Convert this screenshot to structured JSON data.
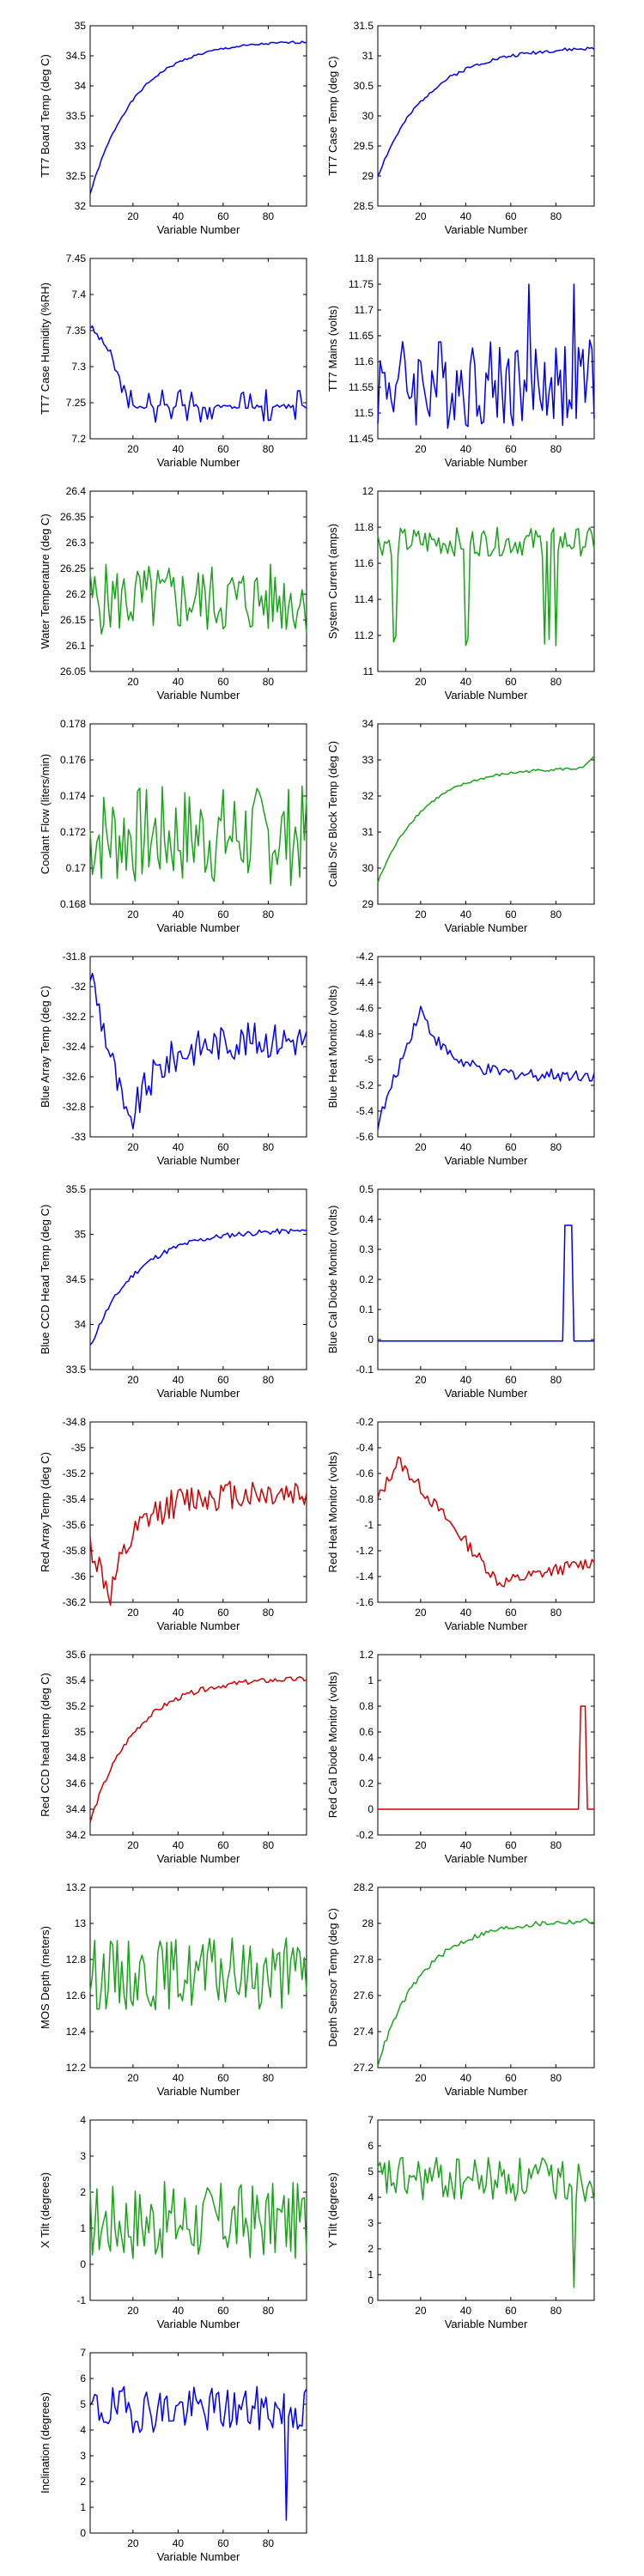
{
  "colors": {
    "blue": "#0000ee",
    "green": "#1aa31a",
    "red": "#cc0000"
  },
  "x_axis": {
    "label": "Variable Number",
    "ticks": [
      20,
      40,
      60,
      80
    ],
    "xlim": [
      1,
      97
    ]
  },
  "chart_data": [
    {
      "type": "line",
      "title": "",
      "ylabel": "TT7 Board Temp (deg C)",
      "xlabel": "Variable Number",
      "color": "blue",
      "ylim": [
        32,
        35
      ],
      "yticks": [
        "32",
        "32.5",
        "33",
        "33.5",
        "34",
        "34.5",
        "35"
      ],
      "ytick_values": [
        32,
        32.5,
        33,
        33.5,
        34,
        34.5,
        35
      ],
      "kind": "rise",
      "params": {
        "start": 32.2,
        "end": 34.75,
        "rate": 0.05,
        "noise": 0.02,
        "seed": 1
      }
    },
    {
      "type": "line",
      "title": "",
      "ylabel": "TT7 Case Temp (deg C)",
      "xlabel": "Variable Number",
      "color": "blue",
      "ylim": [
        28.5,
        31.5
      ],
      "yticks": [
        "28.5",
        "29",
        "29.5",
        "30",
        "30.5",
        "31",
        "31.5"
      ],
      "ytick_values": [
        28.5,
        29,
        29.5,
        30,
        30.5,
        31,
        31.5
      ],
      "kind": "rise",
      "params": {
        "start": 29.0,
        "end": 31.15,
        "rate": 0.045,
        "noise": 0.03,
        "seed": 2
      }
    },
    {
      "type": "line",
      "title": "",
      "ylabel": "TT7 Case Humidity (%RH)",
      "xlabel": "Variable Number",
      "color": "blue",
      "ylim": [
        7.2,
        7.45
      ],
      "yticks": [
        "7.2",
        "7.25",
        "7.3",
        "7.35",
        "7.4",
        "7.45"
      ],
      "ytick_values": [
        7.2,
        7.25,
        7.3,
        7.35,
        7.4,
        7.45
      ],
      "kind": "humidity",
      "params": {
        "seed": 3
      }
    },
    {
      "type": "line",
      "title": "",
      "ylabel": "TT7 Mains (volts)",
      "xlabel": "Variable Number",
      "color": "blue",
      "ylim": [
        11.45,
        11.8
      ],
      "yticks": [
        "11.45",
        "11.5",
        "11.55",
        "11.6",
        "11.65",
        "11.7",
        "11.75",
        "11.8"
      ],
      "ytick_values": [
        11.45,
        11.5,
        11.55,
        11.6,
        11.65,
        11.7,
        11.75,
        11.8
      ],
      "kind": "noise",
      "params": {
        "mean": 11.56,
        "amp": 0.09,
        "spike": 11.75,
        "seed": 4
      }
    },
    {
      "type": "line",
      "title": "",
      "ylabel": "Water Temperature (deg C)",
      "xlabel": "Variable Number",
      "color": "green",
      "ylim": [
        26.05,
        26.4
      ],
      "yticks": [
        "26.05",
        "26.1",
        "26.15",
        "26.2",
        "26.25",
        "26.3",
        "26.35",
        "26.4"
      ],
      "ytick_values": [
        26.05,
        26.1,
        26.15,
        26.2,
        26.25,
        26.3,
        26.35,
        26.4
      ],
      "kind": "noise",
      "params": {
        "mean": 26.19,
        "amp": 0.07,
        "seed": 5
      }
    },
    {
      "type": "line",
      "title": "",
      "ylabel": "System Current (amps)",
      "xlabel": "Variable Number",
      "color": "green",
      "ylim": [
        11,
        12
      ],
      "yticks": [
        "11",
        "11.2",
        "11.4",
        "11.6",
        "11.8",
        "12"
      ],
      "ytick_values": [
        11,
        11.2,
        11.4,
        11.6,
        11.8,
        12
      ],
      "kind": "dips",
      "params": {
        "mean": 11.72,
        "amp": 0.08,
        "dip": 11.12,
        "seed": 6
      }
    },
    {
      "type": "line",
      "title": "",
      "ylabel": "Coolant Flow (liters/min)",
      "xlabel": "Variable Number",
      "color": "green",
      "ylim": [
        0.168,
        0.178
      ],
      "yticks": [
        "0.168",
        "0.17",
        "0.172",
        "0.174",
        "0.176",
        "0.178"
      ],
      "ytick_values": [
        0.168,
        0.17,
        0.172,
        0.174,
        0.176,
        0.178
      ],
      "kind": "noise",
      "params": {
        "mean": 0.1718,
        "amp": 0.0028,
        "seed": 7
      }
    },
    {
      "type": "line",
      "title": "",
      "ylabel": "Calib Src Block Temp (deg C)",
      "xlabel": "Variable Number",
      "color": "green",
      "ylim": [
        29,
        34
      ],
      "yticks": [
        "29",
        "30",
        "31",
        "32",
        "33",
        "34"
      ],
      "ytick_values": [
        29,
        30,
        31,
        32,
        33,
        34
      ],
      "kind": "rise",
      "params": {
        "start": 29.6,
        "end": 32.8,
        "rate": 0.05,
        "noise": 0.04,
        "seed": 8,
        "tail": 33.1
      }
    },
    {
      "type": "line",
      "title": "",
      "ylabel": "Blue Array Temp (deg C)",
      "xlabel": "Variable Number",
      "color": "blue",
      "ylim": [
        -33,
        -31.8
      ],
      "yticks": [
        "-33",
        "-32.8",
        "-32.6",
        "-32.4",
        "-32.2",
        "-32",
        "-31.8"
      ],
      "ytick_values": [
        -33,
        -32.8,
        -32.6,
        -32.4,
        -32.2,
        -32,
        -31.8
      ],
      "kind": "dipRecover",
      "params": {
        "start": -31.9,
        "low": -32.95,
        "lowAt": 18,
        "end": -32.35,
        "amp": 0.12,
        "seed": 9
      }
    },
    {
      "type": "line",
      "title": "",
      "ylabel": "Blue Heat Monitor (volts)",
      "xlabel": "Variable Number",
      "color": "blue",
      "ylim": [
        -5.6,
        -4.2
      ],
      "yticks": [
        "-5.6",
        "-5.4",
        "-5.2",
        "-5",
        "-4.8",
        "-4.6",
        "-4.4",
        "-4.2"
      ],
      "ytick_values": [
        -5.6,
        -5.4,
        -5.2,
        -5,
        -4.8,
        -4.6,
        -4.4,
        -4.2
      ],
      "kind": "bump",
      "params": {
        "start": -5.5,
        "peak": -4.6,
        "peakAt": 20,
        "end": -5.12,
        "amp": 0.05,
        "seed": 10
      }
    },
    {
      "type": "line",
      "title": "",
      "ylabel": "Blue CCD Head Temp (deg C)",
      "xlabel": "Variable Number",
      "color": "blue",
      "ylim": [
        33.5,
        35.5
      ],
      "yticks": [
        "33.5",
        "34",
        "34.5",
        "35",
        "35.5"
      ],
      "ytick_values": [
        33.5,
        34,
        34.5,
        35,
        35.5
      ],
      "kind": "rise",
      "params": {
        "start": 33.75,
        "end": 35.05,
        "rate": 0.05,
        "noise": 0.03,
        "seed": 11
      }
    },
    {
      "type": "line",
      "title": "",
      "ylabel": "Blue Cal Diode Monitor (volts)",
      "xlabel": "Variable Number",
      "color": "blue",
      "ylim": [
        -0.1,
        0.5
      ],
      "yticks": [
        "-0.1",
        "0",
        "0.1",
        "0.2",
        "0.3",
        "0.4",
        "0.5"
      ],
      "ytick_values": [
        -0.1,
        0,
        0.1,
        0.2,
        0.3,
        0.4,
        0.5
      ],
      "kind": "pulse",
      "params": {
        "base": -0.005,
        "high": 0.38,
        "from": 84,
        "to": 87
      }
    },
    {
      "type": "line",
      "title": "",
      "ylabel": "Red Array Temp (deg C)",
      "xlabel": "Variable Number",
      "color": "red",
      "ylim": [
        -36.2,
        -34.8
      ],
      "yticks": [
        "-36.2",
        "-36",
        "-35.8",
        "-35.6",
        "-35.4",
        "-35.2",
        "-35",
        "-34.8"
      ],
      "ytick_values": [
        -36.2,
        -36,
        -35.8,
        -35.6,
        -35.4,
        -35.2,
        -35,
        -34.8
      ],
      "kind": "dipRecover",
      "params": {
        "start": -35.75,
        "low": -36.15,
        "lowAt": 10,
        "end": -35.35,
        "amp": 0.12,
        "seed": 12
      }
    },
    {
      "type": "line",
      "title": "",
      "ylabel": "Red Heat Monitor (volts)",
      "xlabel": "Variable Number",
      "color": "red",
      "ylim": [
        -1.6,
        -0.2
      ],
      "yticks": [
        "-1.6",
        "-1.4",
        "-1.2",
        "-1",
        "-0.8",
        "-0.6",
        "-0.4",
        "-0.2"
      ],
      "ytick_values": [
        -1.6,
        -1.4,
        -1.2,
        -1,
        -0.8,
        -0.6,
        -0.4,
        -0.2
      ],
      "kind": "bump",
      "params": {
        "start": -0.8,
        "peak": -0.5,
        "peakAt": 10,
        "end": -1.28,
        "amp": 0.05,
        "seed": 13,
        "low": -1.45,
        "lowAt": 55
      }
    },
    {
      "type": "line",
      "title": "",
      "ylabel": "Red CCD head temp (deg C)",
      "xlabel": "Variable Number",
      "color": "red",
      "ylim": [
        34.2,
        35.6
      ],
      "yticks": [
        "34.2",
        "34.4",
        "34.6",
        "34.8",
        "35",
        "35.2",
        "35.4",
        "35.6"
      ],
      "ytick_values": [
        34.2,
        34.4,
        34.6,
        34.8,
        35,
        35.2,
        35.4,
        35.6
      ],
      "kind": "rise",
      "params": {
        "start": 34.3,
        "end": 35.42,
        "rate": 0.05,
        "noise": 0.02,
        "seed": 14
      }
    },
    {
      "type": "line",
      "title": "",
      "ylabel": "Red Cal Diode Monitor (volts)",
      "xlabel": "Variable Number",
      "color": "red",
      "ylim": [
        -0.2,
        1.2
      ],
      "yticks": [
        "-0.2",
        "0",
        "0.2",
        "0.4",
        "0.6",
        "0.8",
        "1",
        "1.2"
      ],
      "ytick_values": [
        -0.2,
        0,
        0.2,
        0.4,
        0.6,
        0.8,
        1,
        1.2
      ],
      "kind": "pulse",
      "params": {
        "base": 0.0,
        "high": 0.8,
        "from": 91,
        "to": 93
      }
    },
    {
      "type": "line",
      "title": "",
      "ylabel": "MOS Depth  (meters)",
      "xlabel": "Variable Number",
      "color": "green",
      "ylim": [
        12.2,
        13.2
      ],
      "yticks": [
        "12.2",
        "12.4",
        "12.6",
        "12.8",
        "13",
        "13.2"
      ],
      "ytick_values": [
        12.2,
        12.4,
        12.6,
        12.8,
        13,
        13.2
      ],
      "kind": "noise",
      "params": {
        "mean": 12.72,
        "amp": 0.2,
        "seed": 15
      }
    },
    {
      "type": "line",
      "title": "",
      "ylabel": "Depth Sensor Temp (deg C)",
      "xlabel": "Variable Number",
      "color": "green",
      "ylim": [
        27.2,
        28.2
      ],
      "yticks": [
        "27.2",
        "27.4",
        "27.6",
        "27.8",
        "28",
        "28.2"
      ],
      "ytick_values": [
        27.2,
        27.4,
        27.6,
        27.8,
        28,
        28.2
      ],
      "kind": "rise",
      "params": {
        "start": 27.22,
        "end": 28.02,
        "rate": 0.05,
        "noise": 0.015,
        "seed": 16
      }
    },
    {
      "type": "line",
      "title": "",
      "ylabel": "X Tilt  (degrees)",
      "xlabel": "Variable Number",
      "color": "green",
      "ylim": [
        -1,
        4
      ],
      "yticks": [
        "-1",
        "0",
        "1",
        "2",
        "3",
        "4"
      ],
      "ytick_values": [
        -1,
        0,
        1,
        2,
        3,
        4
      ],
      "kind": "noise",
      "params": {
        "mean": 1.2,
        "amp": 1.1,
        "seed": 17
      }
    },
    {
      "type": "line",
      "title": "",
      "ylabel": "Y Tilt  (degrees)",
      "xlabel": "Variable Number",
      "color": "green",
      "ylim": [
        0,
        7
      ],
      "yticks": [
        "0",
        "1",
        "2",
        "3",
        "4",
        "5",
        "6",
        "7"
      ],
      "ytick_values": [
        0,
        1,
        2,
        3,
        4,
        5,
        6,
        7
      ],
      "kind": "noise",
      "params": {
        "mean": 4.7,
        "amp": 0.9,
        "seed": 18,
        "spikeLow": 0.5,
        "spikeAt": 88
      }
    },
    {
      "type": "line",
      "title": "",
      "ylabel": "Inclination  (degrees)",
      "xlabel": "Variable Number",
      "color": "blue",
      "ylim": [
        0,
        7
      ],
      "yticks": [
        "0",
        "1",
        "2",
        "3",
        "4",
        "5",
        "6",
        "7"
      ],
      "ytick_values": [
        0,
        1,
        2,
        3,
        4,
        5,
        6,
        7
      ],
      "kind": "noise",
      "params": {
        "mean": 4.8,
        "amp": 0.9,
        "seed": 19,
        "spikeLow": 0.5,
        "spikeAt": 88
      }
    }
  ]
}
